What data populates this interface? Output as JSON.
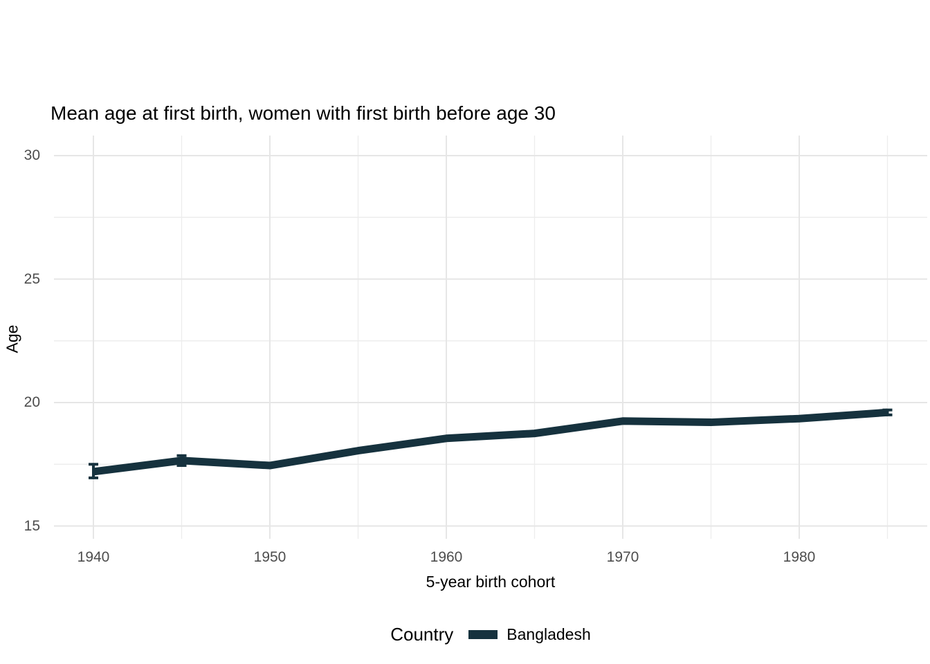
{
  "chart_data": {
    "type": "line",
    "title": "Mean age at first birth, women with first birth before age 30",
    "xlabel": "5-year birth cohort",
    "ylabel": "Age",
    "legend_title": "Country",
    "legend_position": "bottom",
    "grid": true,
    "background_color": "#ffffff",
    "grid_major_color": "#e6e6e6",
    "grid_minor_color": "#ededed",
    "tick_label_color": "#4d4d4d",
    "x_ticks": [
      1940,
      1950,
      1960,
      1970,
      1980
    ],
    "x_minor_ticks": [
      1945,
      1955,
      1965,
      1975,
      1985
    ],
    "y_ticks": [
      15,
      20,
      25,
      30
    ],
    "y_minor_ticks": [
      17.5,
      22.5,
      27.5
    ],
    "xlim": [
      1937.75,
      1987.25
    ],
    "ylim": [
      14.5,
      30.8
    ],
    "series": [
      {
        "name": "Bangladesh",
        "color": "#16323e",
        "x": [
          1940,
          1945,
          1950,
          1955,
          1960,
          1965,
          1970,
          1975,
          1980,
          1985
        ],
        "y": [
          17.2,
          17.65,
          17.45,
          18.05,
          18.55,
          18.75,
          19.25,
          19.2,
          19.35,
          19.6
        ],
        "ci_low": [
          16.95,
          17.45,
          null,
          null,
          null,
          null,
          null,
          null,
          null,
          19.5
        ],
        "ci_high": [
          17.5,
          17.85,
          null,
          null,
          null,
          null,
          null,
          null,
          null,
          19.7
        ]
      }
    ]
  }
}
